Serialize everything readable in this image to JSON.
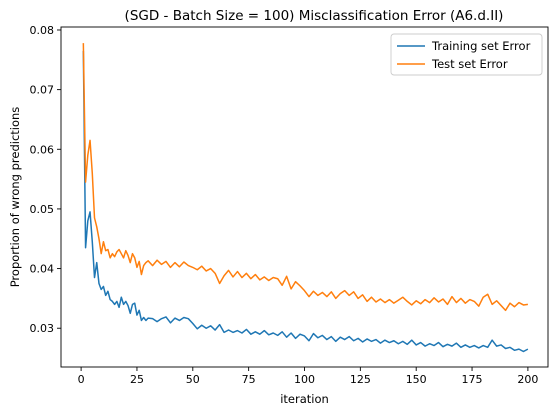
{
  "chart_data": {
    "type": "line",
    "title": "(SGD - Batch Size = 100) Misclassification Error (A6.d.II)",
    "xlabel": "iteration",
    "ylabel": "Proportion of wrong predictions",
    "xlim": [
      -9,
      209
    ],
    "ylim": [
      0.0235,
      0.0805
    ],
    "xticks": [
      0,
      25,
      50,
      75,
      100,
      125,
      150,
      175,
      200
    ],
    "xtick_labels": [
      "0",
      "25",
      "50",
      "75",
      "100",
      "125",
      "150",
      "175",
      "200"
    ],
    "yticks": [
      0.03,
      0.04,
      0.05,
      0.06,
      0.07,
      0.08
    ],
    "ytick_labels": [
      "0.03",
      "0.04",
      "0.05",
      "0.06",
      "0.07",
      "0.08"
    ],
    "grid": false,
    "legend_position": "top-right",
    "series": [
      {
        "name": "Training set Error",
        "color": "#1f77b4",
        "points": [
          [
            1,
            0.0765
          ],
          [
            2,
            0.0435
          ],
          [
            3,
            0.048
          ],
          [
            4,
            0.0495
          ],
          [
            5,
            0.0445
          ],
          [
            6,
            0.0385
          ],
          [
            7,
            0.041
          ],
          [
            8,
            0.0375
          ],
          [
            9,
            0.0365
          ],
          [
            10,
            0.037
          ],
          [
            11,
            0.0355
          ],
          [
            12,
            0.0362
          ],
          [
            13,
            0.0348
          ],
          [
            14,
            0.0345
          ],
          [
            15,
            0.034
          ],
          [
            16,
            0.0345
          ],
          [
            17,
            0.0335
          ],
          [
            18,
            0.0352
          ],
          [
            19,
            0.034
          ],
          [
            20,
            0.0345
          ],
          [
            21,
            0.0338
          ],
          [
            22,
            0.0325
          ],
          [
            23,
            0.034
          ],
          [
            24,
            0.0342
          ],
          [
            25,
            0.0322
          ],
          [
            26,
            0.033
          ],
          [
            27,
            0.0313
          ],
          [
            28,
            0.0318
          ],
          [
            29,
            0.0313
          ],
          [
            30,
            0.0317
          ],
          [
            32,
            0.0316
          ],
          [
            34,
            0.0311
          ],
          [
            36,
            0.0316
          ],
          [
            38,
            0.0319
          ],
          [
            40,
            0.0309
          ],
          [
            42,
            0.0317
          ],
          [
            44,
            0.0313
          ],
          [
            46,
            0.0318
          ],
          [
            48,
            0.0316
          ],
          [
            50,
            0.0308
          ],
          [
            52,
            0.0299
          ],
          [
            54,
            0.0305
          ],
          [
            56,
            0.03
          ],
          [
            58,
            0.0304
          ],
          [
            60,
            0.0297
          ],
          [
            62,
            0.0306
          ],
          [
            64,
            0.0293
          ],
          [
            66,
            0.0297
          ],
          [
            68,
            0.0293
          ],
          [
            70,
            0.0296
          ],
          [
            72,
            0.0292
          ],
          [
            74,
            0.0298
          ],
          [
            76,
            0.029
          ],
          [
            78,
            0.0294
          ],
          [
            80,
            0.029
          ],
          [
            82,
            0.0296
          ],
          [
            84,
            0.0289
          ],
          [
            86,
            0.0292
          ],
          [
            88,
            0.0288
          ],
          [
            90,
            0.0294
          ],
          [
            92,
            0.0285
          ],
          [
            94,
            0.0292
          ],
          [
            96,
            0.0283
          ],
          [
            98,
            0.029
          ],
          [
            100,
            0.0287
          ],
          [
            102,
            0.0279
          ],
          [
            104,
            0.0291
          ],
          [
            106,
            0.0284
          ],
          [
            108,
            0.0288
          ],
          [
            110,
            0.0281
          ],
          [
            112,
            0.0286
          ],
          [
            114,
            0.0278
          ],
          [
            116,
            0.0285
          ],
          [
            118,
            0.0281
          ],
          [
            120,
            0.0286
          ],
          [
            122,
            0.0279
          ],
          [
            124,
            0.0283
          ],
          [
            126,
            0.0277
          ],
          [
            128,
            0.0282
          ],
          [
            130,
            0.0278
          ],
          [
            132,
            0.0281
          ],
          [
            134,
            0.0275
          ],
          [
            136,
            0.028
          ],
          [
            138,
            0.0276
          ],
          [
            140,
            0.0279
          ],
          [
            142,
            0.0274
          ],
          [
            144,
            0.0278
          ],
          [
            146,
            0.0273
          ],
          [
            148,
            0.028
          ],
          [
            150,
            0.0272
          ],
          [
            152,
            0.0276
          ],
          [
            154,
            0.027
          ],
          [
            156,
            0.0274
          ],
          [
            158,
            0.0271
          ],
          [
            160,
            0.0276
          ],
          [
            162,
            0.0269
          ],
          [
            164,
            0.0273
          ],
          [
            166,
            0.027
          ],
          [
            168,
            0.0275
          ],
          [
            170,
            0.0268
          ],
          [
            172,
            0.0272
          ],
          [
            174,
            0.0268
          ],
          [
            176,
            0.0271
          ],
          [
            178,
            0.0267
          ],
          [
            180,
            0.0271
          ],
          [
            182,
            0.0268
          ],
          [
            184,
            0.028
          ],
          [
            186,
            0.027
          ],
          [
            188,
            0.0272
          ],
          [
            190,
            0.0266
          ],
          [
            192,
            0.0268
          ],
          [
            194,
            0.0263
          ],
          [
            196,
            0.0265
          ],
          [
            198,
            0.0261
          ],
          [
            200,
            0.0265
          ]
        ]
      },
      {
        "name": "Test set Error",
        "color": "#ff7f0e",
        "points": [
          [
            1,
            0.0778
          ],
          [
            2,
            0.0545
          ],
          [
            3,
            0.059
          ],
          [
            4,
            0.0615
          ],
          [
            5,
            0.056
          ],
          [
            6,
            0.0485
          ],
          [
            7,
            0.047
          ],
          [
            8,
            0.045
          ],
          [
            9,
            0.0425
          ],
          [
            10,
            0.0445
          ],
          [
            11,
            0.043
          ],
          [
            12,
            0.0432
          ],
          [
            13,
            0.0418
          ],
          [
            14,
            0.0425
          ],
          [
            15,
            0.042
          ],
          [
            16,
            0.0428
          ],
          [
            17,
            0.0432
          ],
          [
            18,
            0.0425
          ],
          [
            19,
            0.0418
          ],
          [
            20,
            0.043
          ],
          [
            21,
            0.0422
          ],
          [
            22,
            0.041
          ],
          [
            23,
            0.0425
          ],
          [
            24,
            0.0418
          ],
          [
            25,
            0.0402
          ],
          [
            26,
            0.0412
          ],
          [
            27,
            0.039
          ],
          [
            28,
            0.0405
          ],
          [
            29,
            0.041
          ],
          [
            30,
            0.0413
          ],
          [
            32,
            0.0405
          ],
          [
            34,
            0.0414
          ],
          [
            36,
            0.0407
          ],
          [
            38,
            0.0412
          ],
          [
            40,
            0.0402
          ],
          [
            42,
            0.041
          ],
          [
            44,
            0.0403
          ],
          [
            46,
            0.0411
          ],
          [
            48,
            0.0405
          ],
          [
            50,
            0.0402
          ],
          [
            52,
            0.0398
          ],
          [
            54,
            0.0404
          ],
          [
            56,
            0.0396
          ],
          [
            58,
            0.04
          ],
          [
            60,
            0.0392
          ],
          [
            62,
            0.0375
          ],
          [
            64,
            0.0388
          ],
          [
            66,
            0.0397
          ],
          [
            68,
            0.0386
          ],
          [
            70,
            0.0395
          ],
          [
            72,
            0.0385
          ],
          [
            74,
            0.0392
          ],
          [
            76,
            0.0383
          ],
          [
            78,
            0.039
          ],
          [
            80,
            0.0381
          ],
          [
            82,
            0.0386
          ],
          [
            84,
            0.038
          ],
          [
            86,
            0.0385
          ],
          [
            88,
            0.0383
          ],
          [
            90,
            0.0372
          ],
          [
            92,
            0.0387
          ],
          [
            94,
            0.0366
          ],
          [
            96,
            0.0378
          ],
          [
            98,
            0.0371
          ],
          [
            100,
            0.0363
          ],
          [
            102,
            0.0353
          ],
          [
            104,
            0.0362
          ],
          [
            106,
            0.0355
          ],
          [
            108,
            0.036
          ],
          [
            110,
            0.0353
          ],
          [
            112,
            0.0361
          ],
          [
            114,
            0.035
          ],
          [
            116,
            0.0358
          ],
          [
            118,
            0.0363
          ],
          [
            120,
            0.0355
          ],
          [
            122,
            0.0361
          ],
          [
            124,
            0.035
          ],
          [
            126,
            0.0356
          ],
          [
            128,
            0.0345
          ],
          [
            130,
            0.0352
          ],
          [
            132,
            0.0344
          ],
          [
            134,
            0.0349
          ],
          [
            136,
            0.0343
          ],
          [
            138,
            0.0348
          ],
          [
            140,
            0.0342
          ],
          [
            142,
            0.0347
          ],
          [
            144,
            0.0352
          ],
          [
            146,
            0.0345
          ],
          [
            148,
            0.0339
          ],
          [
            150,
            0.0346
          ],
          [
            152,
            0.0341
          ],
          [
            154,
            0.0348
          ],
          [
            156,
            0.0343
          ],
          [
            158,
            0.0351
          ],
          [
            160,
            0.0344
          ],
          [
            162,
            0.0349
          ],
          [
            164,
            0.034
          ],
          [
            166,
            0.0353
          ],
          [
            168,
            0.0343
          ],
          [
            170,
            0.035
          ],
          [
            172,
            0.0342
          ],
          [
            174,
            0.0348
          ],
          [
            176,
            0.0345
          ],
          [
            178,
            0.0337
          ],
          [
            180,
            0.0352
          ],
          [
            182,
            0.0357
          ],
          [
            184,
            0.034
          ],
          [
            186,
            0.0346
          ],
          [
            188,
            0.0338
          ],
          [
            190,
            0.033
          ],
          [
            192,
            0.0342
          ],
          [
            194,
            0.0336
          ],
          [
            196,
            0.0343
          ],
          [
            198,
            0.0339
          ],
          [
            200,
            0.034
          ]
        ]
      }
    ]
  }
}
